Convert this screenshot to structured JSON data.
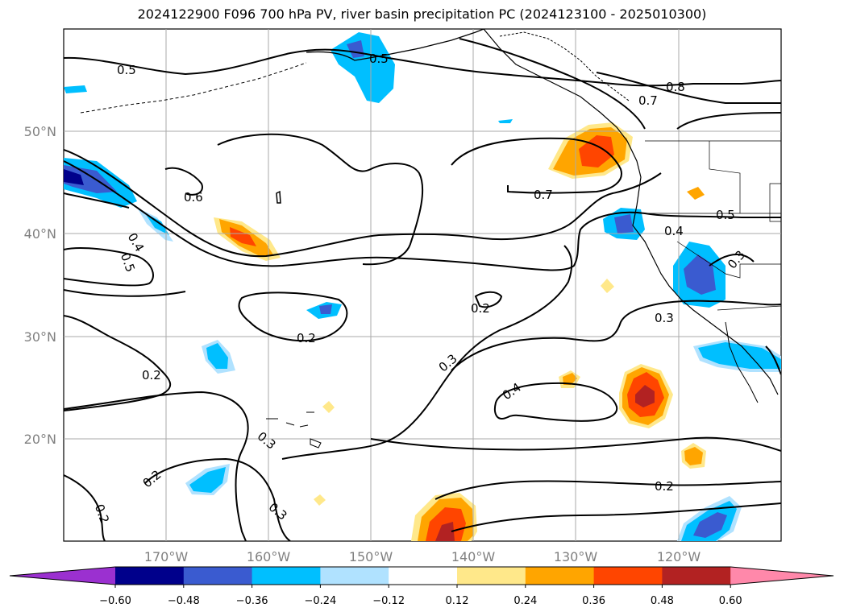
{
  "title": "2024122900 F096 700 hPa PV, river basin precipitation PC (2024123100 - 2025010300)",
  "lat_labels": [
    "50°N",
    "40°N",
    "30°N",
    "20°N"
  ],
  "lon_labels": [
    "170°W",
    "160°W",
    "150°W",
    "140°W",
    "130°W",
    "120°W"
  ],
  "pv_contour_labels": [
    "0.5",
    "0.5",
    "0.8",
    "0.7",
    "0.6",
    "0.7",
    "0.4",
    "0.5",
    "0.5",
    "0.4",
    "0.3",
    "0.2",
    "0.2",
    "0.3",
    "0.3",
    "0.2",
    "0.4",
    "0.3",
    "0.2",
    "0.2",
    "0.3",
    "0.2"
  ],
  "colorbar": {
    "ticks": [
      "−0.60",
      "−0.48",
      "−0.36",
      "−0.24",
      "−0.12",
      "0.12",
      "0.24",
      "0.36",
      "0.48",
      "0.60"
    ],
    "colors": [
      "#9b30d0",
      "#00008b",
      "#3a5bd0",
      "#00bfff",
      "#b0e2ff",
      "#ffffff",
      "#ffe88a",
      "#ffa500",
      "#ff4500",
      "#b22222",
      "#ff88aa"
    ]
  }
}
